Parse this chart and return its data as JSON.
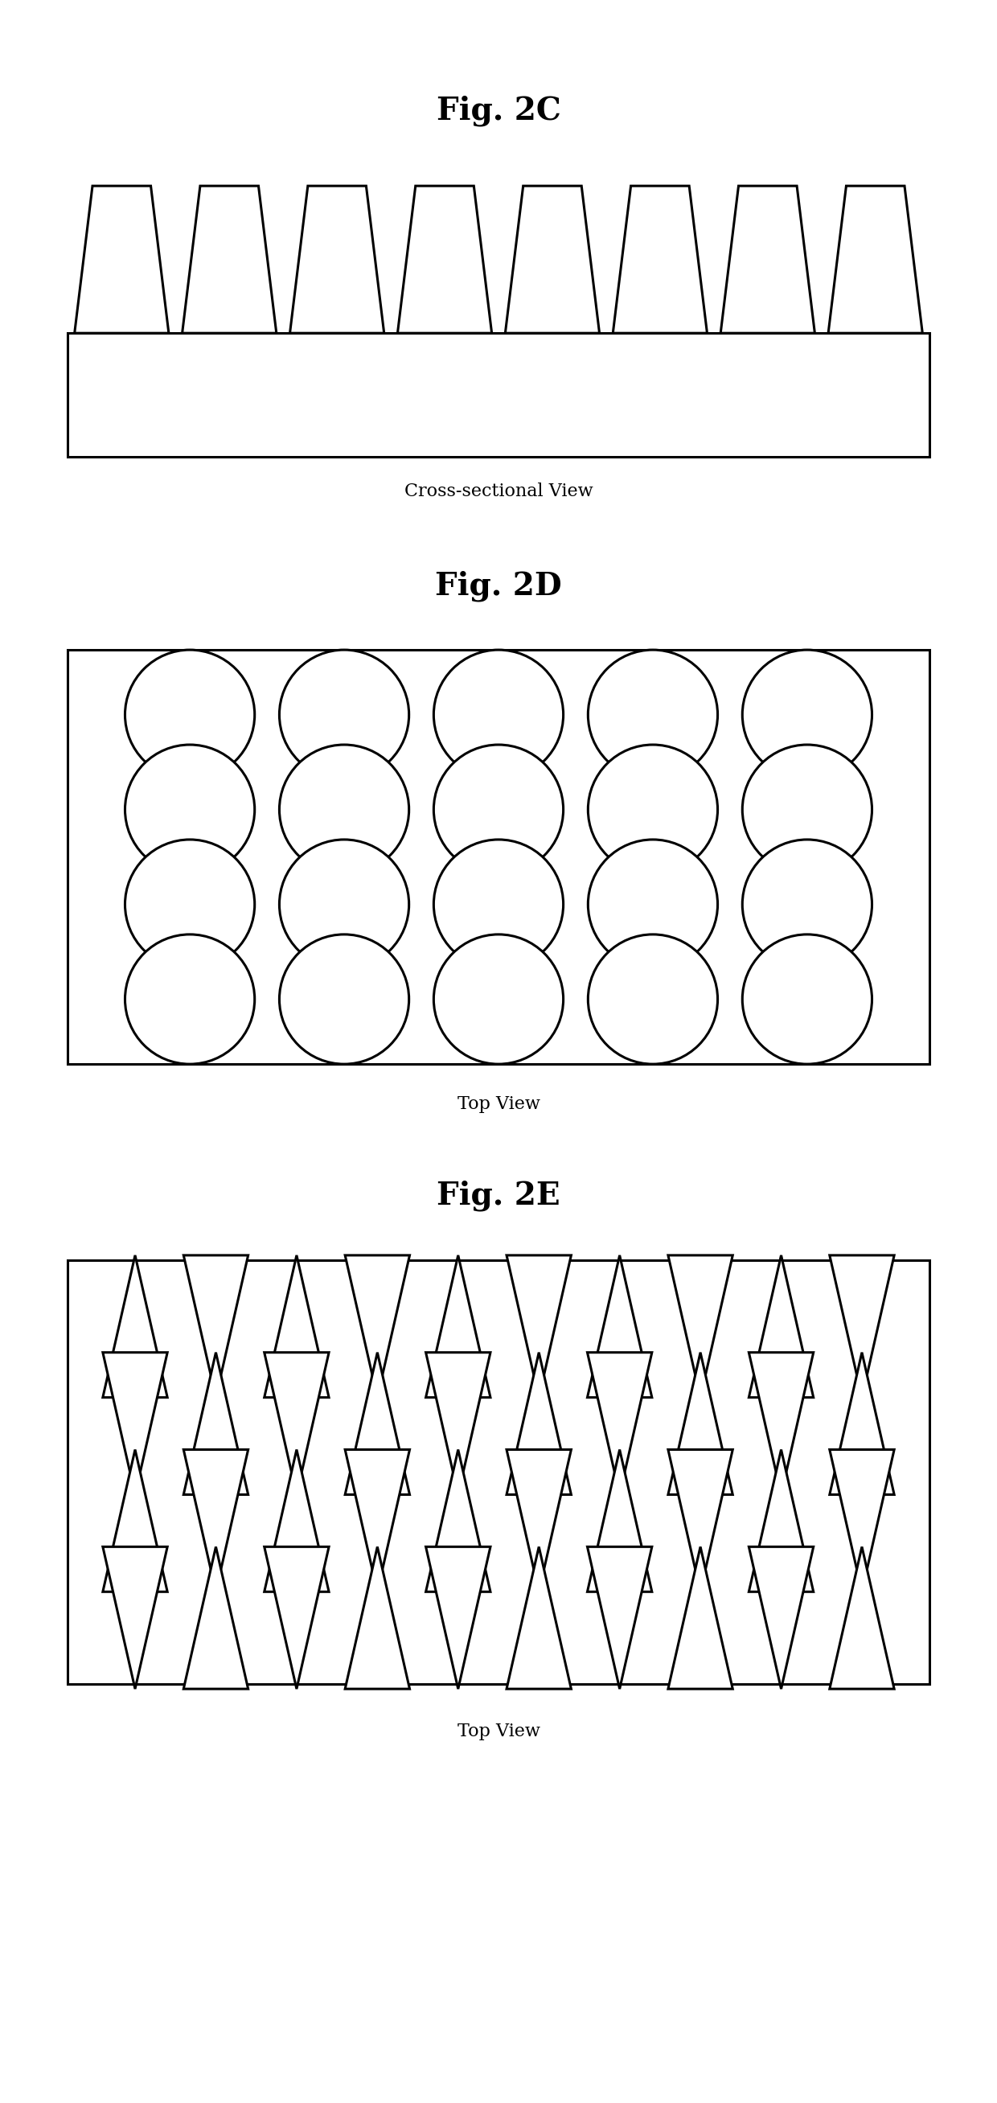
{
  "fig_title_2c": "Fig. 2C",
  "fig_title_2d": "Fig. 2D",
  "fig_title_2e": "Fig. 2E",
  "label_cross": "Cross-sectional View",
  "label_top1": "Top View",
  "label_top2": "Top View",
  "bg_color": "#ffffff",
  "line_color": "#000000",
  "linewidth": 2.2,
  "title_fontsize": 28,
  "label_fontsize": 16
}
